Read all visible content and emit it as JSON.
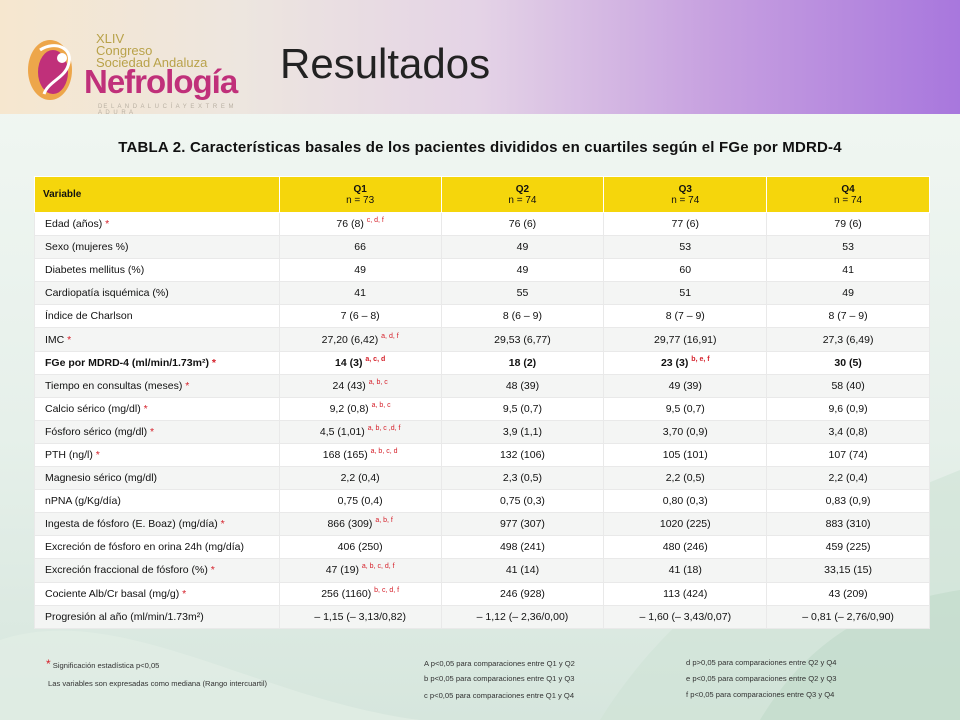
{
  "header": {
    "logo": {
      "edition": "XLIV",
      "line1": "Congreso",
      "line2": "Sociedad Andaluza",
      "brand": "Nefrología",
      "tagline": "DE L A N D A L U C Í A Y E X T R E M A D U R A"
    },
    "title": "Resultados"
  },
  "table_title": "TABLA 2. Características basales de los pacientes divididos en cuartiles según el FGe por MDRD-4",
  "table": {
    "headers": [
      {
        "label": "Variable",
        "sub": ""
      },
      {
        "label": "Q1",
        "sub": "n = 73"
      },
      {
        "label": "Q2",
        "sub": "n = 74"
      },
      {
        "label": "Q3",
        "sub": "n = 74"
      },
      {
        "label": "Q4",
        "sub": "n = 74"
      }
    ],
    "rows": [
      {
        "variable": "Edad (años)",
        "star": " *",
        "cells": [
          {
            "v": "76 (8)",
            "s": "c, d, f"
          },
          {
            "v": "76 (6)",
            "s": ""
          },
          {
            "v": "77 (6)",
            "s": ""
          },
          {
            "v": "79 (6)",
            "s": ""
          }
        ]
      },
      {
        "variable": "Sexo (mujeres %)",
        "star": "",
        "cells": [
          {
            "v": "66",
            "s": ""
          },
          {
            "v": "49",
            "s": ""
          },
          {
            "v": "53",
            "s": ""
          },
          {
            "v": "53",
            "s": ""
          }
        ]
      },
      {
        "variable": "Diabetes mellitus (%)",
        "star": "",
        "cells": [
          {
            "v": "49",
            "s": ""
          },
          {
            "v": "49",
            "s": ""
          },
          {
            "v": "60",
            "s": ""
          },
          {
            "v": "41",
            "s": ""
          }
        ]
      },
      {
        "variable": "Cardiopatía isquémica (%)",
        "star": "",
        "cells": [
          {
            "v": "41",
            "s": ""
          },
          {
            "v": "55",
            "s": ""
          },
          {
            "v": "51",
            "s": ""
          },
          {
            "v": "49",
            "s": ""
          }
        ]
      },
      {
        "variable": "Índice de Charlson",
        "star": "",
        "cells": [
          {
            "v": "7 (6 – 8)",
            "s": ""
          },
          {
            "v": "8 (6 – 9)",
            "s": ""
          },
          {
            "v": "8 (7 – 9)",
            "s": ""
          },
          {
            "v": "8 (7 – 9)",
            "s": ""
          }
        ]
      },
      {
        "variable": "IMC",
        "star": " *",
        "cells": [
          {
            "v": "27,20 (6,42)",
            "s": "a, d, f"
          },
          {
            "v": "29,53 (6,77)",
            "s": ""
          },
          {
            "v": "29,77 (16,91)",
            "s": ""
          },
          {
            "v": "27,3 (6,49)",
            "s": ""
          }
        ]
      },
      {
        "variable": "FGe por MDRD-4 (ml/min/1.73m²)",
        "star": " *",
        "bold": true,
        "cells": [
          {
            "v": "14 (3)",
            "s": "a, c, d"
          },
          {
            "v": "18 (2)",
            "s": ""
          },
          {
            "v": "23 (3)",
            "s": "b, e, f"
          },
          {
            "v": "30 (5)",
            "s": ""
          }
        ]
      },
      {
        "variable": "Tiempo en consultas (meses)",
        "star": " *",
        "cells": [
          {
            "v": "24 (43)",
            "s": "a, b, c"
          },
          {
            "v": "48 (39)",
            "s": ""
          },
          {
            "v": "49 (39)",
            "s": ""
          },
          {
            "v": "58 (40)",
            "s": ""
          }
        ]
      },
      {
        "variable": "Calcio sérico (mg/dl)",
        "star": " *",
        "cells": [
          {
            "v": "9,2 (0,8)",
            "s": "a, b, c"
          },
          {
            "v": "9,5 (0,7)",
            "s": ""
          },
          {
            "v": "9,5 (0,7)",
            "s": ""
          },
          {
            "v": "9,6 (0,9)",
            "s": ""
          }
        ]
      },
      {
        "variable": "Fósforo sérico (mg/dl)",
        "star": " *",
        "cells": [
          {
            "v": "4,5 (1,01)",
            "s": "a, b, c ,d, f"
          },
          {
            "v": "3,9 (1,1)",
            "s": ""
          },
          {
            "v": "3,70 (0,9)",
            "s": ""
          },
          {
            "v": "3,4 (0,8)",
            "s": ""
          }
        ]
      },
      {
        "variable": "PTH (ng/l)",
        "star": " *",
        "cells": [
          {
            "v": "168 (165)",
            "s": "a, b, c, d"
          },
          {
            "v": "132 (106)",
            "s": ""
          },
          {
            "v": "105 (101)",
            "s": ""
          },
          {
            "v": "107 (74)",
            "s": ""
          }
        ]
      },
      {
        "variable": "Magnesio sérico (mg/dl)",
        "star": "",
        "cells": [
          {
            "v": "2,2 (0,4)",
            "s": ""
          },
          {
            "v": "2,3 (0,5)",
            "s": ""
          },
          {
            "v": "2,2 (0,5)",
            "s": ""
          },
          {
            "v": "2,2 (0,4)",
            "s": ""
          }
        ]
      },
      {
        "variable": "nPNA (g/Kg/día)",
        "star": "",
        "cells": [
          {
            "v": "0,75 (0,4)",
            "s": ""
          },
          {
            "v": "0,75 (0,3)",
            "s": ""
          },
          {
            "v": "0,80 (0,3)",
            "s": ""
          },
          {
            "v": "0,83 (0,9)",
            "s": ""
          }
        ]
      },
      {
        "variable": "Ingesta de fósforo (E. Boaz) (mg/día)",
        "star": " *",
        "cells": [
          {
            "v": "866 (309)",
            "s": "a, b, f"
          },
          {
            "v": "977 (307)",
            "s": ""
          },
          {
            "v": "1020 (225)",
            "s": ""
          },
          {
            "v": "883 (310)",
            "s": ""
          }
        ]
      },
      {
        "variable": "Excreción de fósforo en orina 24h (mg/día)",
        "star": "",
        "cells": [
          {
            "v": "406 (250)",
            "s": ""
          },
          {
            "v": "498 (241)",
            "s": ""
          },
          {
            "v": "480 (246)",
            "s": ""
          },
          {
            "v": "459 (225)",
            "s": ""
          }
        ]
      },
      {
        "variable": "Excreción fraccional de fósforo (%)",
        "star": " *",
        "cells": [
          {
            "v": "47 (19)",
            "s": "a, b, c, d, f"
          },
          {
            "v": "41 (14)",
            "s": ""
          },
          {
            "v": "41 (18)",
            "s": ""
          },
          {
            "v": "33,15 (15)",
            "s": ""
          }
        ]
      },
      {
        "variable": "Cociente Alb/Cr basal (mg/g)",
        "star": " *",
        "cells": [
          {
            "v": "256 (1160)",
            "s": "b, c, d, f"
          },
          {
            "v": "246 (928)",
            "s": ""
          },
          {
            "v": "113 (424)",
            "s": ""
          },
          {
            "v": "43 (209)",
            "s": ""
          }
        ]
      },
      {
        "variable": "Progresión al año (ml/min/1.73m²)",
        "star": "",
        "cells": [
          {
            "v": "– 1,15 (– 3,13/0,82)",
            "s": ""
          },
          {
            "v": "– 1,12 (– 2,36/0,00)",
            "s": ""
          },
          {
            "v": "– 1,60 (– 3,43/0,07)",
            "s": ""
          },
          {
            "v": "– 0,81 (– 2,76/0,90)",
            "s": ""
          }
        ]
      }
    ]
  },
  "footnotes": {
    "star_symbol": "*",
    "star_note": "Significación estadística p<0,05",
    "median_note": "Las variables son expresadas como mediana (Rango intercuartil)",
    "col2": [
      "A p<0,05 para comparaciones entre Q1 y Q2",
      "b p<0,05 para comparaciones entre Q1 y Q3",
      "c p<0,05 para comparaciones entre Q1 y Q4"
    ],
    "col3": [
      "d p>0,05 para comparaciones entre Q2 y Q4",
      "e p<0,05 para comparaciones entre Q2 y Q3",
      "f p<0,05 para comparaciones entre Q3 y Q4"
    ]
  },
  "colors": {
    "header_fill": "#f5d60c",
    "annotation_red": "#d5202a",
    "brand_magenta": "#c0307a",
    "brand_gold": "#b9a24a"
  }
}
